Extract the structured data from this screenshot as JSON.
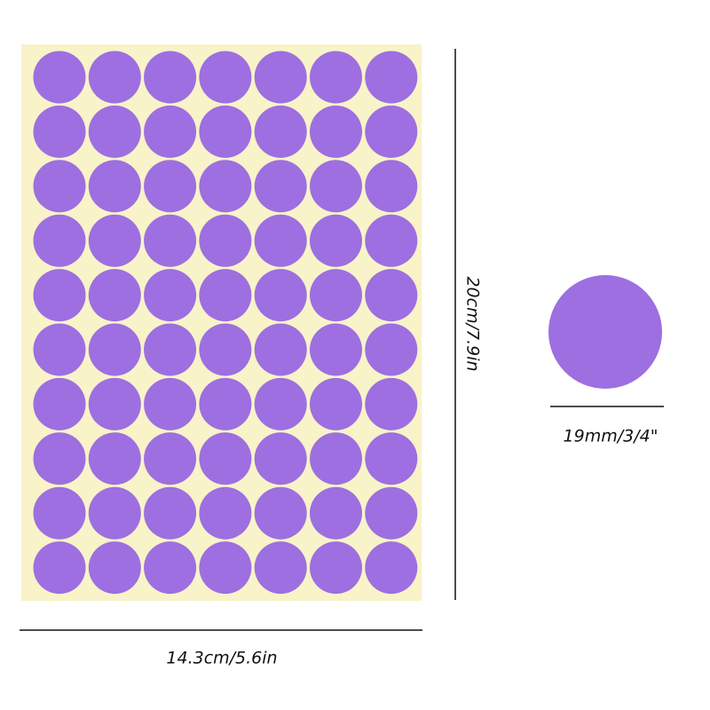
{
  "height_label": "20cm/7.9in",
  "width_label": "14.3cm/5.6in",
  "diameter_label": "19mm/3/4\""
}
